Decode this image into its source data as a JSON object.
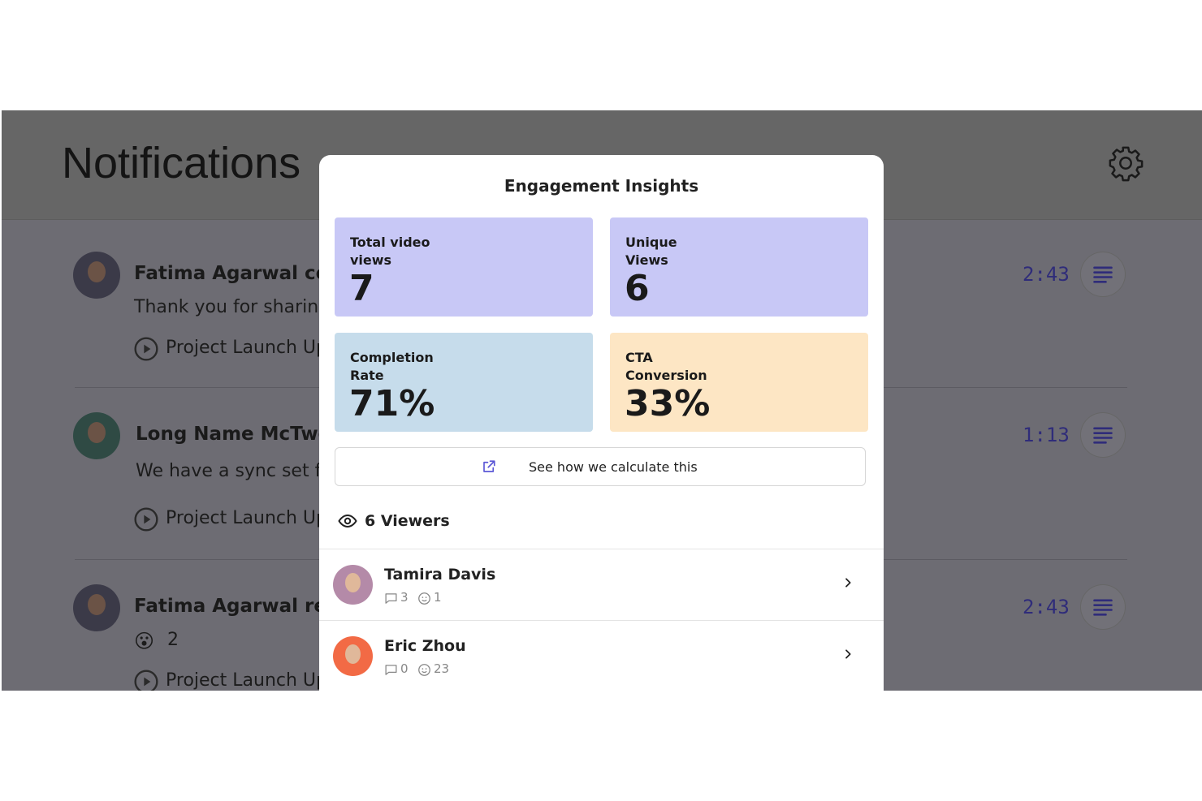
{
  "background": {
    "header": {
      "title": "Notifications"
    },
    "notifications": [
      {
        "name": "Fatima Agarwal com",
        "message": "Thank you for sharing",
        "link": "Project Launch Up",
        "time": "2:43"
      },
      {
        "name": "Long Name McTwo",
        "message": "We have a sync set f",
        "link": "Project Launch Up",
        "time": "1:13"
      },
      {
        "name": "Fatima Agarwal reac",
        "emoji": "😮",
        "count": "2",
        "link": "Project Launch Up",
        "time": "2:43"
      }
    ]
  },
  "modal": {
    "title": "Engagement Insights",
    "stats": [
      {
        "label": "Total video views",
        "value": "7"
      },
      {
        "label": "Unique Views",
        "value": "6"
      },
      {
        "label": "Completion Rate",
        "value": "71%"
      },
      {
        "label": "CTA Conversion",
        "value": "33%"
      }
    ],
    "link_button": "See how we calculate this",
    "viewers_heading": "6 Viewers",
    "viewers": [
      {
        "name": "Tamira Davis",
        "comments": "3",
        "reactions": "1"
      },
      {
        "name": "Eric Zhou",
        "comments": "0",
        "reactions": "23"
      }
    ]
  }
}
